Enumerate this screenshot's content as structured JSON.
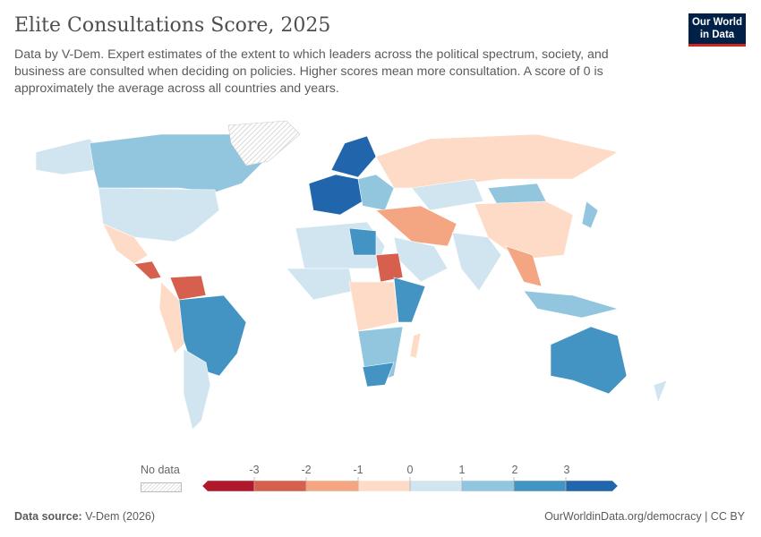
{
  "header": {
    "title": "Elite Consultations Score, 2025",
    "subtitle": "Data by V-Dem. Expert estimates of the extent to which leaders across the political spectrum, society, and business are consulted when deciding on policies. Higher scores mean more consultation. A score of 0 is approximately the average across all countries and years.",
    "logo_line1": "Our World",
    "logo_line2": "in Data"
  },
  "legend": {
    "no_data_label": "No data",
    "ticks": [
      "-3",
      "-2",
      "-1",
      "0",
      "1",
      "2",
      "3"
    ],
    "bins": [
      "#b2182b",
      "#d6604d",
      "#f4a582",
      "#fddbc7",
      "#d1e5f0",
      "#92c5de",
      "#4393c3",
      "#2166ac"
    ],
    "no_data_color": "#dddddd"
  },
  "footer": {
    "source_label": "Data source:",
    "source_value": "V-Dem (2026)",
    "link": "OurWorldinData.org/democracy | CC BY"
  }
}
